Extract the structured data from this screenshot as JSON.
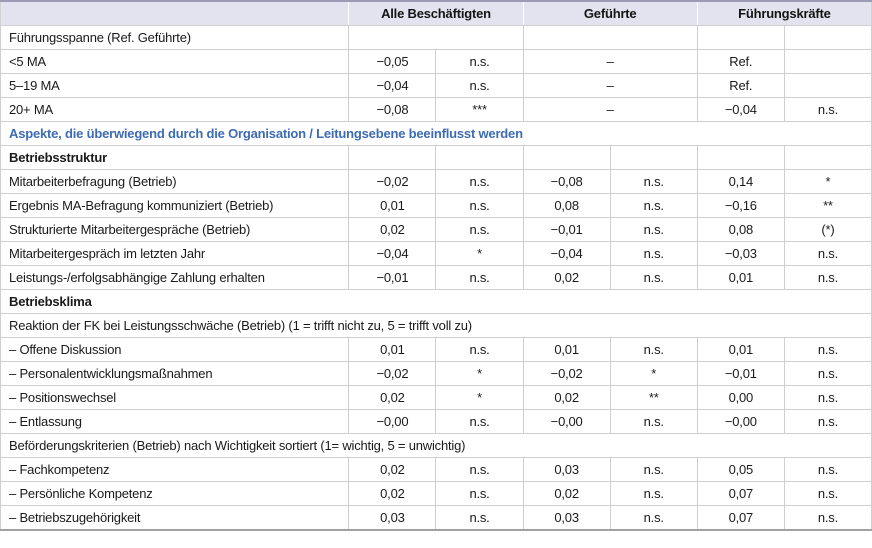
{
  "colors": {
    "header_background": "#e3e3f0",
    "section_accent_blue": "#3d6cb4",
    "grid_line": "#cfcfcf",
    "top_border": "#9b9bb6",
    "text": "#1a1a1a"
  },
  "table": {
    "header": {
      "row_label_column": "",
      "groups": [
        "Alle Beschäftigten",
        "Geführte",
        "Führungskräfte"
      ]
    },
    "rows": [
      {
        "cells": [
          {
            "t": "Führungsspanne (Ref. Geführte)",
            "k": "label"
          },
          {
            "t": "",
            "k": "empty",
            "cs": 2
          },
          {
            "t": "",
            "k": "empty",
            "cs": 2
          },
          {
            "t": "",
            "k": "empty"
          },
          {
            "t": "",
            "k": "empty"
          }
        ]
      },
      {
        "cells": [
          {
            "t": "<5 MA",
            "k": "label"
          },
          {
            "t": "−0,05",
            "k": "val"
          },
          {
            "t": "n.s.",
            "k": "sig"
          },
          {
            "t": "–",
            "k": "dash",
            "cs": 2
          },
          {
            "t": "Ref.",
            "k": "val"
          },
          {
            "t": "",
            "k": "sig"
          }
        ]
      },
      {
        "cells": [
          {
            "t": "5–19 MA",
            "k": "label"
          },
          {
            "t": "−0,04",
            "k": "val"
          },
          {
            "t": "n.s.",
            "k": "sig"
          },
          {
            "t": "–",
            "k": "dash",
            "cs": 2
          },
          {
            "t": "Ref.",
            "k": "val"
          },
          {
            "t": "",
            "k": "sig"
          }
        ]
      },
      {
        "cells": [
          {
            "t": "20+ MA",
            "k": "label"
          },
          {
            "t": "−0,08",
            "k": "val"
          },
          {
            "t": "***",
            "k": "sig"
          },
          {
            "t": "–",
            "k": "dash",
            "cs": 2
          },
          {
            "t": "−0,04",
            "k": "val"
          },
          {
            "t": "n.s.",
            "k": "sig"
          }
        ]
      },
      {
        "cells": [
          {
            "t": "Aspekte, die überwiegend durch die Organisation / Leitungsebene beeinflusst werden",
            "k": "section-blue",
            "cs": 7
          }
        ]
      },
      {
        "cells": [
          {
            "t": "Betriebsstruktur",
            "k": "label-bold"
          },
          {
            "t": "",
            "k": "empty"
          },
          {
            "t": "",
            "k": "empty"
          },
          {
            "t": "",
            "k": "empty"
          },
          {
            "t": "",
            "k": "empty"
          },
          {
            "t": "",
            "k": "empty"
          },
          {
            "t": "",
            "k": "empty"
          }
        ]
      },
      {
        "cells": [
          {
            "t": "Mitarbeiterbefragung (Betrieb)",
            "k": "label"
          },
          {
            "t": "−0,02",
            "k": "val"
          },
          {
            "t": "n.s.",
            "k": "sig"
          },
          {
            "t": "−0,08",
            "k": "val"
          },
          {
            "t": "n.s.",
            "k": "sig"
          },
          {
            "t": "0,14",
            "k": "val"
          },
          {
            "t": "*",
            "k": "sig"
          }
        ]
      },
      {
        "cells": [
          {
            "t": "Ergebnis MA-Befragung kommuniziert (Betrieb)",
            "k": "label"
          },
          {
            "t": "0,01",
            "k": "val"
          },
          {
            "t": "n.s.",
            "k": "sig"
          },
          {
            "t": "0,08",
            "k": "val"
          },
          {
            "t": "n.s.",
            "k": "sig"
          },
          {
            "t": "−0,16",
            "k": "val"
          },
          {
            "t": "**",
            "k": "sig"
          }
        ]
      },
      {
        "cells": [
          {
            "t": "Strukturierte Mitarbeitergespräche (Betrieb)",
            "k": "label"
          },
          {
            "t": "0,02",
            "k": "val"
          },
          {
            "t": "n.s.",
            "k": "sig"
          },
          {
            "t": "−0,01",
            "k": "val"
          },
          {
            "t": "n.s.",
            "k": "sig"
          },
          {
            "t": "0,08",
            "k": "val"
          },
          {
            "t": "(*)",
            "k": "sig"
          }
        ]
      },
      {
        "cells": [
          {
            "t": "Mitarbeitergespräch im letzten Jahr",
            "k": "label"
          },
          {
            "t": "−0,04",
            "k": "val"
          },
          {
            "t": "*",
            "k": "sig"
          },
          {
            "t": "−0,04",
            "k": "val"
          },
          {
            "t": "n.s.",
            "k": "sig"
          },
          {
            "t": "−0,03",
            "k": "val"
          },
          {
            "t": "n.s.",
            "k": "sig"
          }
        ]
      },
      {
        "cells": [
          {
            "t": "Leistungs-/erfolgsabhängige Zahlung erhalten",
            "k": "label"
          },
          {
            "t": "−0,01",
            "k": "val"
          },
          {
            "t": "n.s.",
            "k": "sig"
          },
          {
            "t": "0,02",
            "k": "val"
          },
          {
            "t": "n.s.",
            "k": "sig"
          },
          {
            "t": "0,01",
            "k": "val"
          },
          {
            "t": "n.s.",
            "k": "sig"
          }
        ]
      },
      {
        "cells": [
          {
            "t": "Betriebsklima",
            "k": "label-bold",
            "cs": 7
          }
        ]
      },
      {
        "cells": [
          {
            "t": "Reaktion der FK bei Leistungsschwäche (Betrieb) (1 = trifft nicht zu, 5 = trifft voll zu)",
            "k": "section",
            "cs": 7
          }
        ]
      },
      {
        "cells": [
          {
            "t": "– Offene Diskussion",
            "k": "label"
          },
          {
            "t": "0,01",
            "k": "val"
          },
          {
            "t": "n.s.",
            "k": "sig"
          },
          {
            "t": "0,01",
            "k": "val"
          },
          {
            "t": "n.s.",
            "k": "sig"
          },
          {
            "t": "0,01",
            "k": "val"
          },
          {
            "t": "n.s.",
            "k": "sig"
          }
        ]
      },
      {
        "cells": [
          {
            "t": "– Personalentwicklungsmaßnahmen",
            "k": "label"
          },
          {
            "t": "−0,02",
            "k": "val"
          },
          {
            "t": "*",
            "k": "sig"
          },
          {
            "t": "−0,02",
            "k": "val"
          },
          {
            "t": "*",
            "k": "sig"
          },
          {
            "t": "−0,01",
            "k": "val"
          },
          {
            "t": "n.s.",
            "k": "sig"
          }
        ]
      },
      {
        "cells": [
          {
            "t": "– Positionswechsel",
            "k": "label"
          },
          {
            "t": "0,02",
            "k": "val"
          },
          {
            "t": "*",
            "k": "sig"
          },
          {
            "t": "0,02",
            "k": "val"
          },
          {
            "t": "**",
            "k": "sig"
          },
          {
            "t": "0,00",
            "k": "val"
          },
          {
            "t": "n.s.",
            "k": "sig"
          }
        ]
      },
      {
        "cells": [
          {
            "t": "– Entlassung",
            "k": "label"
          },
          {
            "t": "−0,00",
            "k": "val"
          },
          {
            "t": "n.s.",
            "k": "sig"
          },
          {
            "t": "−0,00",
            "k": "val"
          },
          {
            "t": "n.s.",
            "k": "sig"
          },
          {
            "t": "−0,00",
            "k": "val"
          },
          {
            "t": "n.s.",
            "k": "sig"
          }
        ]
      },
      {
        "cells": [
          {
            "t": "Beförderungskriterien (Betrieb) nach Wichtigkeit sortiert (1= wichtig, 5 = unwichtig)",
            "k": "section",
            "cs": 7
          }
        ]
      },
      {
        "cells": [
          {
            "t": "– Fachkompetenz",
            "k": "label"
          },
          {
            "t": "0,02",
            "k": "val"
          },
          {
            "t": "n.s.",
            "k": "sig"
          },
          {
            "t": "0,03",
            "k": "val"
          },
          {
            "t": "n.s.",
            "k": "sig"
          },
          {
            "t": "0,05",
            "k": "val"
          },
          {
            "t": "n.s.",
            "k": "sig"
          }
        ]
      },
      {
        "cells": [
          {
            "t": "– Persönliche Kompetenz",
            "k": "label"
          },
          {
            "t": "0,02",
            "k": "val"
          },
          {
            "t": "n.s.",
            "k": "sig"
          },
          {
            "t": "0,02",
            "k": "val"
          },
          {
            "t": "n.s.",
            "k": "sig"
          },
          {
            "t": "0,07",
            "k": "val"
          },
          {
            "t": "n.s.",
            "k": "sig"
          }
        ]
      },
      {
        "cells": [
          {
            "t": "– Betriebszugehörigkeit",
            "k": "label"
          },
          {
            "t": "0,03",
            "k": "val"
          },
          {
            "t": "n.s.",
            "k": "sig"
          },
          {
            "t": "0,03",
            "k": "val"
          },
          {
            "t": "n.s.",
            "k": "sig"
          },
          {
            "t": "0,07",
            "k": "val"
          },
          {
            "t": "n.s.",
            "k": "sig"
          }
        ]
      }
    ]
  }
}
